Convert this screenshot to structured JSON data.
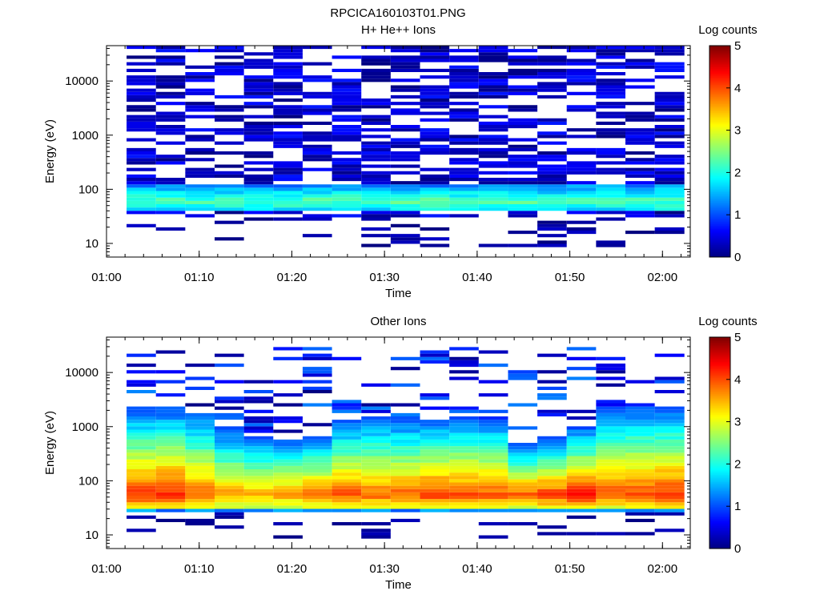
{
  "figure_title": "RPCICA160103T01.PNG",
  "colors": {
    "colormap": [
      "#00007f",
      "#0000ff",
      "#007fff",
      "#00ffff",
      "#7fff7f",
      "#ffff00",
      "#ff7f00",
      "#ff0000",
      "#7f0000"
    ]
  },
  "chart_data": [
    {
      "type": "heatmap",
      "title": "H+ He++ Ions",
      "xlabel": "Time",
      "ylabel": "Energy (eV)",
      "x_ticks": [
        "01:00",
        "01:10",
        "01:20",
        "01:30",
        "01:40",
        "01:50",
        "02:00"
      ],
      "xlim": [
        "01:00",
        "02:03"
      ],
      "y_scale": "log",
      "ylim": [
        5.6,
        45000
      ],
      "y_ticks": [
        "10",
        "100",
        "1000",
        "10000"
      ],
      "colorbar": {
        "label": "Log counts",
        "range": [
          0,
          5
        ],
        "ticks": [
          "0",
          "1",
          "2",
          "3",
          "4",
          "5"
        ]
      },
      "time_bins_start": [
        "01:02:10",
        "01:05:20",
        "01:08:30",
        "01:11:40",
        "01:14:50",
        "01:18:00",
        "01:21:10",
        "01:24:20",
        "01:27:30",
        "01:30:40",
        "01:33:50",
        "01:37:00",
        "01:40:10",
        "01:43:20",
        "01:46:30",
        "01:49:40",
        "01:52:50",
        "01:56:00",
        "01:59:10"
      ],
      "features": {
        "band_energy_eV": [
          40,
          120
        ],
        "band_peak_log_counts": 2.3,
        "background_log_counts": [
          0,
          0.8
        ],
        "background_energy_eV": [
          10,
          45000
        ]
      }
    },
    {
      "type": "heatmap",
      "title": "Other Ions",
      "xlabel": "Time",
      "ylabel": "Energy (eV)",
      "x_ticks": [
        "01:00",
        "01:10",
        "01:20",
        "01:30",
        "01:40",
        "01:50",
        "02:00"
      ],
      "xlim": [
        "01:00",
        "02:03"
      ],
      "y_scale": "log",
      "ylim": [
        5.6,
        45000
      ],
      "y_ticks": [
        "10",
        "100",
        "1000",
        "10000"
      ],
      "colorbar": {
        "label": "Log counts",
        "range": [
          0,
          5
        ],
        "ticks": [
          "0",
          "1",
          "2",
          "3",
          "4",
          "5"
        ]
      },
      "time_bins_start": [
        "01:02:10",
        "01:05:20",
        "01:08:30",
        "01:11:40",
        "01:14:50",
        "01:18:00",
        "01:21:10",
        "01:24:20",
        "01:27:30",
        "01:30:40",
        "01:33:50",
        "01:37:00",
        "01:40:10",
        "01:43:20",
        "01:46:30",
        "01:49:40",
        "01:52:50",
        "01:56:00",
        "01:59:10"
      ],
      "column_upper_energy_eV": [
        2200,
        2200,
        1800,
        900,
        700,
        600,
        700,
        1300,
        1500,
        1400,
        1400,
        1600,
        1400,
        500,
        600,
        1000,
        2200,
        2300,
        2300
      ],
      "column_peak_log_counts": [
        4.2,
        4.3,
        3.9,
        3.6,
        3.5,
        3.6,
        3.8,
        4.0,
        3.9,
        3.9,
        4.1,
        4.0,
        4.0,
        3.9,
        4.1,
        4.3,
        4.0,
        4.1,
        4.2
      ],
      "features": {
        "peak_energy_eV": [
          40,
          70
        ],
        "low_cutoff_eV": 30
      }
    }
  ]
}
